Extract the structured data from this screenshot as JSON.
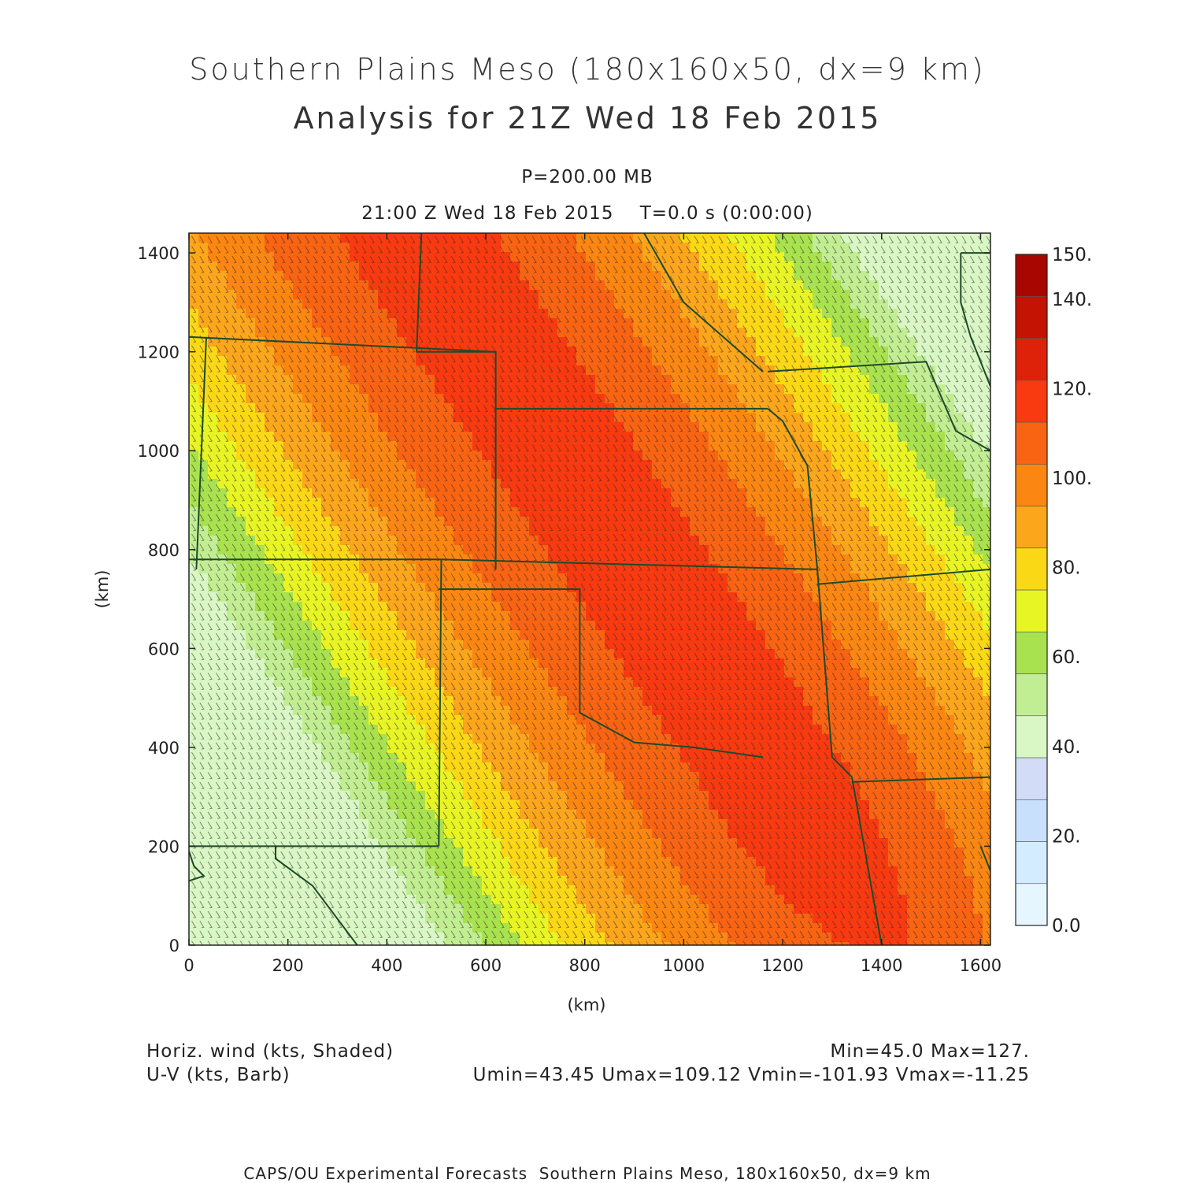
{
  "title": {
    "line1": "Southern Plains Meso (180x160x50, dx=9 km)",
    "line2": "Analysis for 21Z Wed 18 Feb 2015"
  },
  "subtitle": {
    "level": "P=200.00 MB",
    "time": "21:00 Z Wed 18 Feb 2015    T=0.0 s (0:00:00)"
  },
  "footer": {
    "field1": "Horiz. wind (kts, Shaded)",
    "field2": "U-V (kts, Barb)",
    "stats1": "Min=45.0 Max=127.",
    "stats2": "Umin=43.45 Umax=109.12 Vmin=-101.93 Vmax=-11.25",
    "credit": "CAPS/OU Experimental Forecasts  Southern Plains Meso, 180x160x50, dx=9 km"
  },
  "chart_data": {
    "type": "heatmap",
    "xlabel": "(km)",
    "ylabel": "(km)",
    "xlim": [
      0,
      1620
    ],
    "ylim": [
      0,
      1440
    ],
    "xticks": [
      0,
      200,
      400,
      600,
      800,
      1000,
      1200,
      1400,
      1600
    ],
    "yticks": [
      0,
      200,
      400,
      600,
      800,
      1000,
      1200,
      1400
    ],
    "field": "Horiz. wind (kts)",
    "min": 45.0,
    "max": 127,
    "jet_axis_km": [
      [
        470,
        1440
      ],
      [
        1210,
        320
      ]
    ],
    "colorbar": {
      "levels": [
        0,
        10,
        20,
        30,
        40,
        50,
        60,
        70,
        80,
        90,
        100,
        110,
        120,
        130,
        140,
        150
      ],
      "labels": [
        "0.0",
        "20.",
        "40.",
        "60.",
        "80.",
        "100.",
        "120.",
        "140.",
        "150."
      ],
      "colors": [
        "#e6f6ff",
        "#d4ecff",
        "#c8e0fb",
        "#d2dcf6",
        "#d8f7c4",
        "#c2ee93",
        "#a9e24f",
        "#e8f525",
        "#fbd816",
        "#fca61c",
        "#fb8712",
        "#f96413",
        "#f93a10",
        "#de2109",
        "#c41203",
        "#a80600"
      ]
    },
    "barbs": "U-V (kts, Barb)"
  }
}
